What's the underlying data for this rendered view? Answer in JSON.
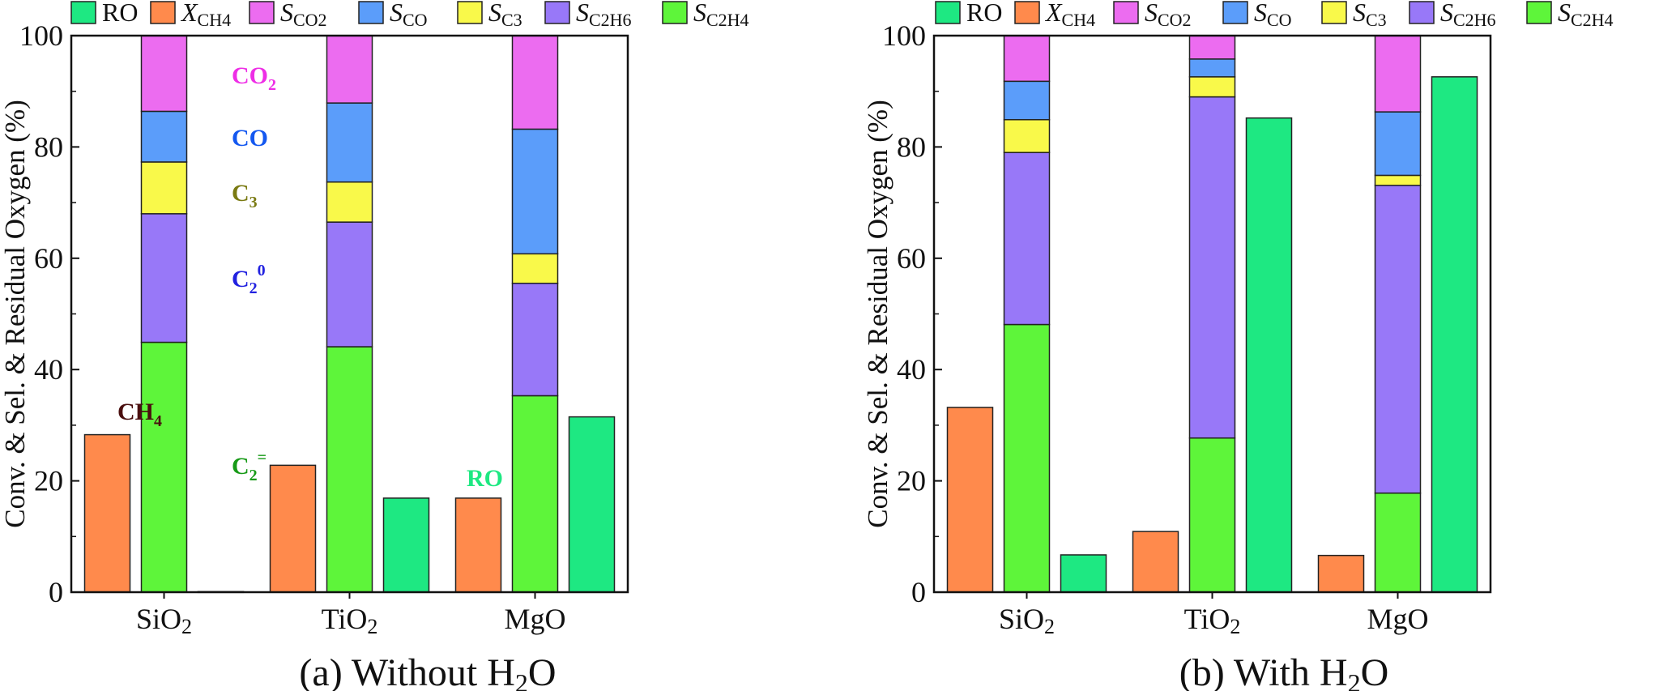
{
  "figure": {
    "legend": [
      {
        "key": "RO",
        "main": "RO",
        "sub": "",
        "italic": false,
        "color": "#1ee882"
      },
      {
        "key": "XCH4",
        "main": "X",
        "sub": "CH4",
        "italic": true,
        "color": "#ff8a4c"
      },
      {
        "key": "SCO2",
        "main": "S",
        "sub": "CO2",
        "italic": true,
        "color": "#ec6cf0"
      },
      {
        "key": "SCO",
        "main": "S",
        "sub": "CO",
        "italic": true,
        "color": "#5b9dfa"
      },
      {
        "key": "SC3",
        "main": "S",
        "sub": "C3",
        "italic": true,
        "color": "#f9f94a"
      },
      {
        "key": "SC2H6",
        "main": "S",
        "sub": "C2H6",
        "italic": true,
        "color": "#9878f8"
      },
      {
        "key": "SC2H4",
        "main": "S",
        "sub": "C2H4",
        "italic": true,
        "color": "#5ef53a"
      }
    ],
    "panel_a": {
      "caption_main": "(a) Without H",
      "caption_sub": "2",
      "caption_tail": "O",
      "annotations": {
        "co2": {
          "main": "CO",
          "sub": "2",
          "color": "#ee2ee6"
        },
        "co": {
          "main": "CO",
          "sub": "",
          "color": "#1458f0"
        },
        "c3": {
          "main": "C",
          "sub": "3",
          "color": "#7a7a12"
        },
        "c20": {
          "main": "C",
          "sub": "2",
          "sup": "0",
          "color": "#2222e0"
        },
        "c2eq": {
          "main": "C",
          "sub": "2",
          "sup": "=",
          "color": "#179a17"
        },
        "ch4": {
          "main": "CH",
          "sub": "4",
          "color": "#4a0f0f"
        },
        "ro": {
          "main": "RO",
          "sub": "",
          "color": "#1ee882"
        }
      }
    },
    "panel_b": {
      "caption_main": "(b) With H",
      "caption_sub": "2",
      "caption_tail": "O"
    }
  },
  "chart_data": [
    {
      "type": "bar",
      "title": "(a) Without H2O",
      "ylabel": "Conv. & Sel. & Residual Oxygen (%)",
      "xlabel": "",
      "ylim": [
        0,
        100
      ],
      "yticks": [
        0,
        20,
        40,
        60,
        80,
        100
      ],
      "categories": [
        {
          "main": "SiO",
          "sub": "2"
        },
        {
          "main": "TiO",
          "sub": "2"
        },
        {
          "main": "MgO",
          "sub": ""
        }
      ],
      "series": [
        {
          "name": "X_CH4",
          "values": [
            28.3,
            22.8,
            16.9
          ]
        },
        {
          "name": "S_C2H4",
          "values": [
            44.9,
            44.1,
            35.3
          ]
        },
        {
          "name": "S_C2H6",
          "values": [
            23.1,
            22.4,
            20.2
          ]
        },
        {
          "name": "S_C3",
          "values": [
            9.3,
            7.2,
            5.3
          ]
        },
        {
          "name": "S_CO",
          "values": [
            9.1,
            14.2,
            22.4
          ]
        },
        {
          "name": "S_CO2",
          "values": [
            13.6,
            12.1,
            16.8
          ]
        },
        {
          "name": "RO",
          "values": [
            0.1,
            16.9,
            31.5
          ]
        }
      ]
    },
    {
      "type": "bar",
      "title": "(b) With H2O",
      "ylabel": "Conv. & Sel. & Residual Oxygen (%)",
      "xlabel": "",
      "ylim": [
        0,
        100
      ],
      "yticks": [
        0,
        20,
        40,
        60,
        80,
        100
      ],
      "categories": [
        {
          "main": "SiO",
          "sub": "2"
        },
        {
          "main": "TiO",
          "sub": "2"
        },
        {
          "main": "MgO",
          "sub": ""
        }
      ],
      "series": [
        {
          "name": "X_CH4",
          "values": [
            33.2,
            10.9,
            6.6
          ]
        },
        {
          "name": "S_C2H4",
          "values": [
            48.1,
            27.7,
            17.8
          ]
        },
        {
          "name": "S_C2H6",
          "values": [
            30.9,
            61.3,
            55.3
          ]
        },
        {
          "name": "S_C3",
          "values": [
            5.9,
            3.6,
            1.8
          ]
        },
        {
          "name": "S_CO",
          "values": [
            6.9,
            3.2,
            11.4
          ]
        },
        {
          "name": "S_CO2",
          "values": [
            8.2,
            4.2,
            13.7
          ]
        },
        {
          "name": "RO",
          "values": [
            6.7,
            85.2,
            92.6
          ]
        }
      ]
    }
  ]
}
